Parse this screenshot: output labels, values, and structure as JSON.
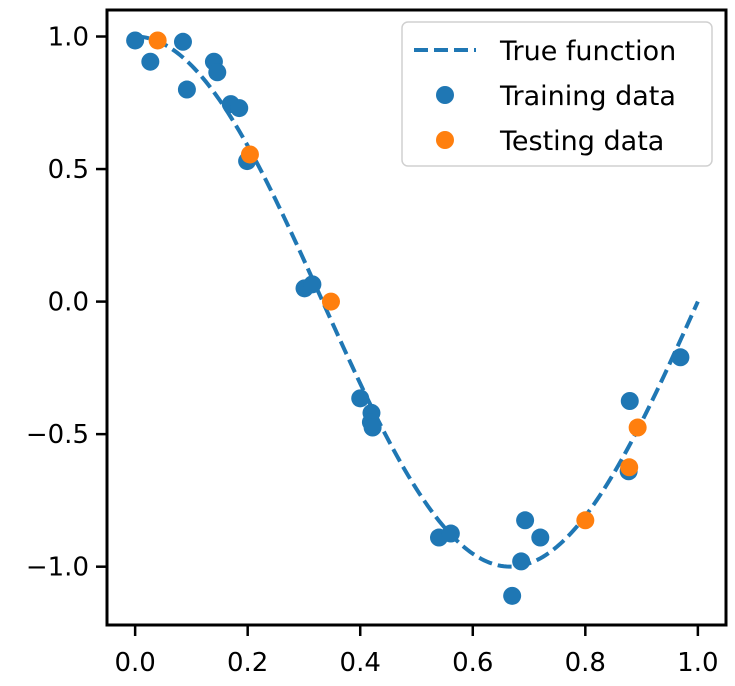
{
  "chart_data": {
    "type": "scatter",
    "title": "",
    "xlabel": "",
    "ylabel": "",
    "xlim": [
      -0.05,
      1.05
    ],
    "ylim": [
      -1.22,
      1.1
    ],
    "grid": false,
    "legend_position": "top-right",
    "xticks": [
      0.0,
      0.2,
      0.4,
      0.6,
      0.8,
      1.0
    ],
    "xtick_labels": [
      "0.0",
      "0.2",
      "0.4",
      "0.6",
      "0.8",
      "1.0"
    ],
    "yticks": [
      1.0,
      0.5,
      0.0,
      -0.5,
      -1.0
    ],
    "ytick_labels": [
      "1.0",
      "0.5",
      "0.0",
      "−0.5",
      "−1.0"
    ],
    "series": [
      {
        "name": "True function",
        "kind": "line",
        "style": "dashed",
        "color": "#1f77b4",
        "function": "cos(1.5*pi*x)",
        "x_range": [
          0,
          1
        ]
      },
      {
        "name": "Training data",
        "kind": "scatter",
        "color": "#1f77b4",
        "points": [
          [
            0.0,
            0.985
          ],
          [
            0.027,
            0.905
          ],
          [
            0.085,
            0.98
          ],
          [
            0.092,
            0.8
          ],
          [
            0.14,
            0.905
          ],
          [
            0.146,
            0.865
          ],
          [
            0.17,
            0.745
          ],
          [
            0.185,
            0.73
          ],
          [
            0.199,
            0.53
          ],
          [
            0.301,
            0.05
          ],
          [
            0.315,
            0.065
          ],
          [
            0.4,
            -0.365
          ],
          [
            0.42,
            -0.42
          ],
          [
            0.419,
            -0.455
          ],
          [
            0.422,
            -0.475
          ],
          [
            0.54,
            -0.89
          ],
          [
            0.561,
            -0.875
          ],
          [
            0.67,
            -1.11
          ],
          [
            0.686,
            -0.98
          ],
          [
            0.693,
            -0.825
          ],
          [
            0.72,
            -0.89
          ],
          [
            0.879,
            -0.375
          ],
          [
            0.877,
            -0.64
          ],
          [
            0.969,
            -0.21
          ]
        ]
      },
      {
        "name": "Testing data",
        "kind": "scatter",
        "color": "#ff7f0e",
        "points": [
          [
            0.04,
            0.985
          ],
          [
            0.204,
            0.555
          ],
          [
            0.348,
            0.0
          ],
          [
            0.8,
            -0.825
          ],
          [
            0.878,
            -0.625
          ],
          [
            0.893,
            -0.475
          ]
        ]
      }
    ]
  }
}
